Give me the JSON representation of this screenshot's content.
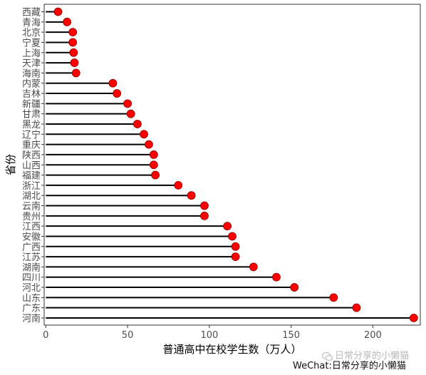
{
  "chart_data": {
    "type": "lollipop",
    "orientation": "horizontal",
    "xlabel": "普通高中在校学生数（万人）",
    "ylabel": "省份",
    "xlim": [
      -1,
      229
    ],
    "xticks": [
      0,
      50,
      100,
      150,
      200
    ],
    "grid": false,
    "legend": "none",
    "categories": [
      "西藏",
      "青海",
      "北京",
      "宁夏",
      "上海",
      "天津",
      "海南",
      "内蒙",
      "吉林",
      "新疆",
      "甘肃",
      "黑龙",
      "辽宁",
      "重庆",
      "陕西",
      "山西",
      "福建",
      "浙江",
      "湖北",
      "云南",
      "贵州",
      "江西",
      "安徽",
      "广西",
      "江苏",
      "湖南",
      "四川",
      "河北",
      "山东",
      "广东",
      "河南"
    ],
    "values": [
      7.5,
      13,
      16.5,
      16.5,
      17,
      17.5,
      18.5,
      41,
      43.5,
      50,
      52,
      56,
      60,
      63,
      66,
      66,
      67,
      81,
      89,
      97,
      97,
      111,
      114,
      116,
      116,
      127,
      141,
      152,
      176,
      190,
      225
    ],
    "colors": {
      "point": "#ff0000",
      "point_edge": "#8b0000",
      "line": "#000000",
      "axis": "#333333"
    }
  },
  "watermark": {
    "line1": "日常分享的小懒猫",
    "line2": "WeChat:日常分享的小懒猫"
  }
}
